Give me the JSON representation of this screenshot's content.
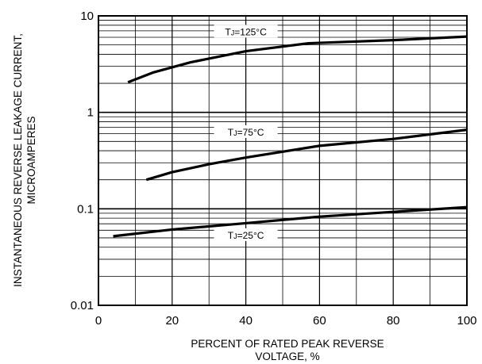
{
  "chart_data": {
    "type": "line",
    "xlabel_lines": [
      "PERCENT OF RATED PEAK REVERSE",
      "VOLTAGE, %"
    ],
    "ylabel_lines": [
      "INSTANTANEOUS REVERSE LEAKAGE CURRENT,",
      "MICROAMPERES"
    ],
    "xlim": [
      0,
      100
    ],
    "ylim": [
      0.01,
      10
    ],
    "y_scale": "log",
    "grid": true,
    "x_ticks": [
      0,
      20,
      40,
      60,
      80,
      100
    ],
    "x_tick_labels": [
      "0",
      "20",
      "40",
      "60",
      "80",
      "100"
    ],
    "y_ticks": [
      0.01,
      0.1,
      1,
      10
    ],
    "y_tick_labels": [
      "0.01",
      "0.1",
      "1",
      "10"
    ],
    "series": [
      {
        "name": "TJ=125°C",
        "label_main": "T",
        "label_sub": "J",
        "label_rest": "=125°C",
        "x": [
          8,
          15,
          25,
          40,
          57,
          80,
          100
        ],
        "y": [
          2.05,
          2.6,
          3.3,
          4.3,
          5.2,
          5.6,
          6.1
        ]
      },
      {
        "name": "TJ=75°C",
        "label_main": "T",
        "label_sub": "J",
        "label_rest": "=75°C",
        "x": [
          13,
          20,
          30,
          40,
          60,
          80,
          100
        ],
        "y": [
          0.2,
          0.24,
          0.29,
          0.34,
          0.45,
          0.53,
          0.66
        ]
      },
      {
        "name": "TJ=25°C",
        "label_main": "T",
        "label_sub": "J",
        "label_rest": "=25°C",
        "x": [
          4,
          20,
          40,
          60,
          80,
          100
        ],
        "y": [
          0.052,
          0.061,
          0.071,
          0.083,
          0.093,
          0.104
        ]
      }
    ]
  }
}
